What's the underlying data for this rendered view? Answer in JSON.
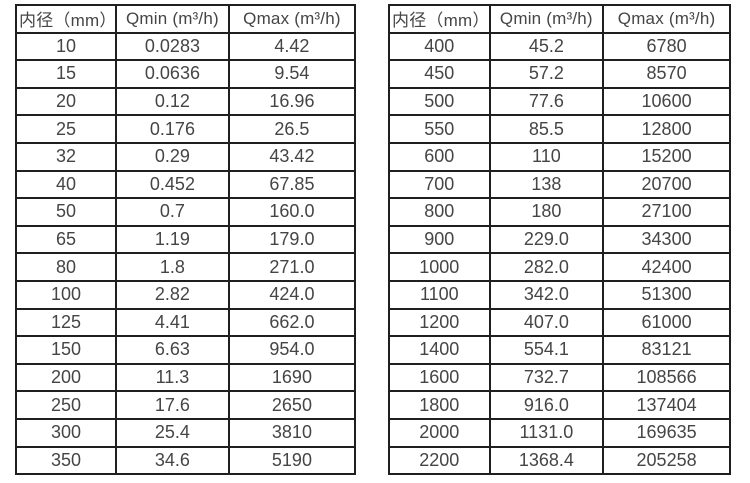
{
  "page": {
    "background": "#ffffff",
    "text_color": "#454545",
    "border_color": "#1f1f1f"
  },
  "tables": [
    {
      "headers": [
        "内径（mm）",
        "Qmin (m³/h)",
        "Qmax (m³/h)"
      ],
      "rows": [
        [
          "10",
          "0.0283",
          "4.42"
        ],
        [
          "15",
          "0.0636",
          "9.54"
        ],
        [
          "20",
          "0.12",
          "16.96"
        ],
        [
          "25",
          "0.176",
          "26.5"
        ],
        [
          "32",
          "0.29",
          "43.42"
        ],
        [
          "40",
          "0.452",
          "67.85"
        ],
        [
          "50",
          "0.7",
          "160.0"
        ],
        [
          "65",
          "1.19",
          "179.0"
        ],
        [
          "80",
          "1.8",
          "271.0"
        ],
        [
          "100",
          "2.82",
          "424.0"
        ],
        [
          "125",
          "4.41",
          "662.0"
        ],
        [
          "150",
          "6.63",
          "954.0"
        ],
        [
          "200",
          "11.3",
          "1690"
        ],
        [
          "250",
          "17.6",
          "2650"
        ],
        [
          "300",
          "25.4",
          "3810"
        ],
        [
          "350",
          "34.6",
          "5190"
        ]
      ]
    },
    {
      "headers": [
        "内径（mm）",
        "Qmin (m³/h)",
        "Qmax (m³/h)"
      ],
      "rows": [
        [
          "400",
          "45.2",
          "6780"
        ],
        [
          "450",
          "57.2",
          "8570"
        ],
        [
          "500",
          "77.6",
          "10600"
        ],
        [
          "550",
          "85.5",
          "12800"
        ],
        [
          "600",
          "110",
          "15200"
        ],
        [
          "700",
          "138",
          "20700"
        ],
        [
          "800",
          "180",
          "27100"
        ],
        [
          "900",
          "229.0",
          "34300"
        ],
        [
          "1000",
          "282.0",
          "42400"
        ],
        [
          "1100",
          "342.0",
          "51300"
        ],
        [
          "1200",
          "407.0",
          "61000"
        ],
        [
          "1400",
          "554.1",
          "83121"
        ],
        [
          "1600",
          "732.7",
          "108566"
        ],
        [
          "1800",
          "916.0",
          "137404"
        ],
        [
          "2000",
          "1131.0",
          "169635"
        ],
        [
          "2200",
          "1368.4",
          "205258"
        ]
      ]
    }
  ]
}
